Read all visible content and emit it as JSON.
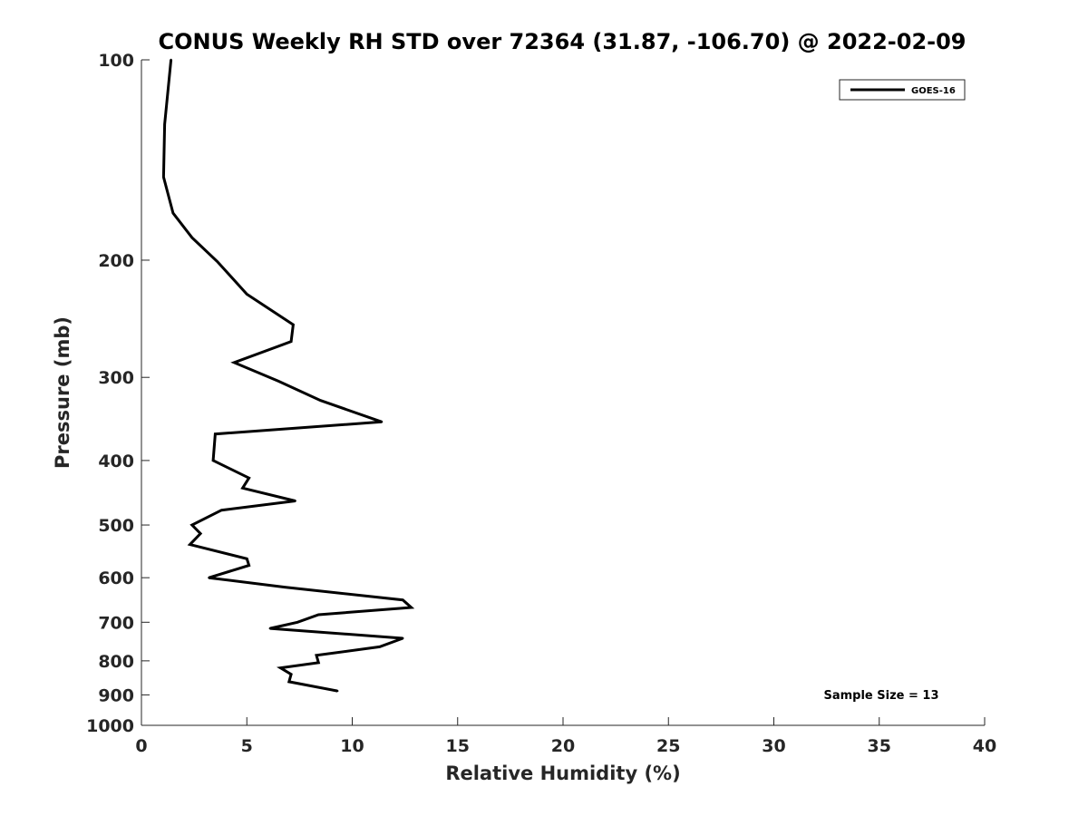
{
  "chart_data": {
    "type": "line",
    "title": "CONUS Weekly RH STD over 72364 (31.87, -106.70) @ 2022-02-09",
    "xlabel": "Relative Humidity (%)",
    "ylabel": "Pressure (mb)",
    "xlim": [
      0,
      40
    ],
    "ylim": [
      100,
      1000
    ],
    "y_scale": "log",
    "y_direction": "reversed",
    "x_ticks": [
      "0",
      "5",
      "10",
      "15",
      "20",
      "25",
      "30",
      "35",
      "40"
    ],
    "y_ticks": [
      "100",
      "200",
      "300",
      "400",
      "500",
      "600",
      "700",
      "800",
      "900",
      "1000"
    ],
    "grid": false,
    "legend": {
      "position": "top-right",
      "entries": [
        "GOES-16"
      ]
    },
    "annotation": "Sample Size = 13",
    "series": [
      {
        "name": "GOES-16",
        "color": "#000000",
        "points": [
          {
            "x": 1.4,
            "y": 100
          },
          {
            "x": 1.1,
            "y": 125
          },
          {
            "x": 1.05,
            "y": 150
          },
          {
            "x": 1.5,
            "y": 170
          },
          {
            "x": 2.4,
            "y": 185
          },
          {
            "x": 3.6,
            "y": 201
          },
          {
            "x": 5.0,
            "y": 225
          },
          {
            "x": 7.2,
            "y": 250
          },
          {
            "x": 7.1,
            "y": 265
          },
          {
            "x": 4.4,
            "y": 285
          },
          {
            "x": 6.5,
            "y": 304
          },
          {
            "x": 8.5,
            "y": 325
          },
          {
            "x": 11.4,
            "y": 350
          },
          {
            "x": 3.5,
            "y": 365
          },
          {
            "x": 3.4,
            "y": 400
          },
          {
            "x": 5.1,
            "y": 425
          },
          {
            "x": 4.8,
            "y": 440
          },
          {
            "x": 7.3,
            "y": 460
          },
          {
            "x": 3.8,
            "y": 475
          },
          {
            "x": 2.4,
            "y": 500
          },
          {
            "x": 2.8,
            "y": 515
          },
          {
            "x": 2.3,
            "y": 535
          },
          {
            "x": 5.0,
            "y": 562
          },
          {
            "x": 5.1,
            "y": 575
          },
          {
            "x": 3.2,
            "y": 600
          },
          {
            "x": 6.8,
            "y": 620
          },
          {
            "x": 12.4,
            "y": 648
          },
          {
            "x": 12.8,
            "y": 665
          },
          {
            "x": 8.4,
            "y": 682
          },
          {
            "x": 7.4,
            "y": 700
          },
          {
            "x": 6.1,
            "y": 715
          },
          {
            "x": 12.4,
            "y": 740
          },
          {
            "x": 11.3,
            "y": 762
          },
          {
            "x": 8.3,
            "y": 785
          },
          {
            "x": 8.4,
            "y": 805
          },
          {
            "x": 6.6,
            "y": 820
          },
          {
            "x": 7.1,
            "y": 838
          },
          {
            "x": 7.0,
            "y": 860
          },
          {
            "x": 9.3,
            "y": 888
          }
        ]
      }
    ]
  }
}
